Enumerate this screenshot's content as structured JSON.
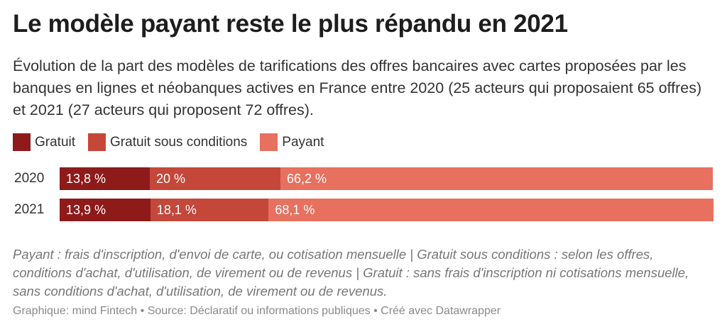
{
  "title": "Le modèle payant reste le plus répandu en 2021",
  "subtitle": "Évolution de la part des modèles de tarifications des offres bancaires avec cartes proposées par les banques en lignes et néobanques actives en France entre 2020 (25 acteurs qui proposaient 65 offres) et 2021 (27 acteurs qui proposent 72 offres).",
  "legend": [
    {
      "label": "Gratuit",
      "color": "#8e1a1a"
    },
    {
      "label": "Gratuit sous conditions",
      "color": "#c4473a"
    },
    {
      "label": "Payant",
      "color": "#e8705f"
    }
  ],
  "chart_data": {
    "type": "bar",
    "orientation": "horizontal",
    "stacked": true,
    "categories": [
      "2020",
      "2021"
    ],
    "series": [
      {
        "name": "Gratuit",
        "values": [
          13.8,
          13.9
        ],
        "labels": [
          "13,8 %",
          "13,9 %"
        ],
        "color": "#8e1a1a"
      },
      {
        "name": "Gratuit sous conditions",
        "values": [
          20,
          18.1
        ],
        "labels": [
          "20 %",
          "18,1 %"
        ],
        "color": "#c4473a"
      },
      {
        "name": "Payant",
        "values": [
          66.2,
          68.1
        ],
        "labels": [
          "66,2 %",
          "68,1 %"
        ],
        "color": "#e8705f"
      }
    ],
    "xlim": [
      0,
      100
    ],
    "legend_position": "top-left"
  },
  "notes": "Payant : frais d'inscription, d'envoi de carte, ou cotisation mensuelle | Gratuit sous conditions : selon les offres, conditions d'achat, d'utilisation, de virement ou de revenus | Gratuit : sans frais d'inscription ni cotisations mensuelle, sans conditions d'achat, d'utilisation, de virement ou de revenus.",
  "footer": "Graphique: mind Fintech • Source: Déclaratif ou informations publiques • Créé avec Datawrapper"
}
